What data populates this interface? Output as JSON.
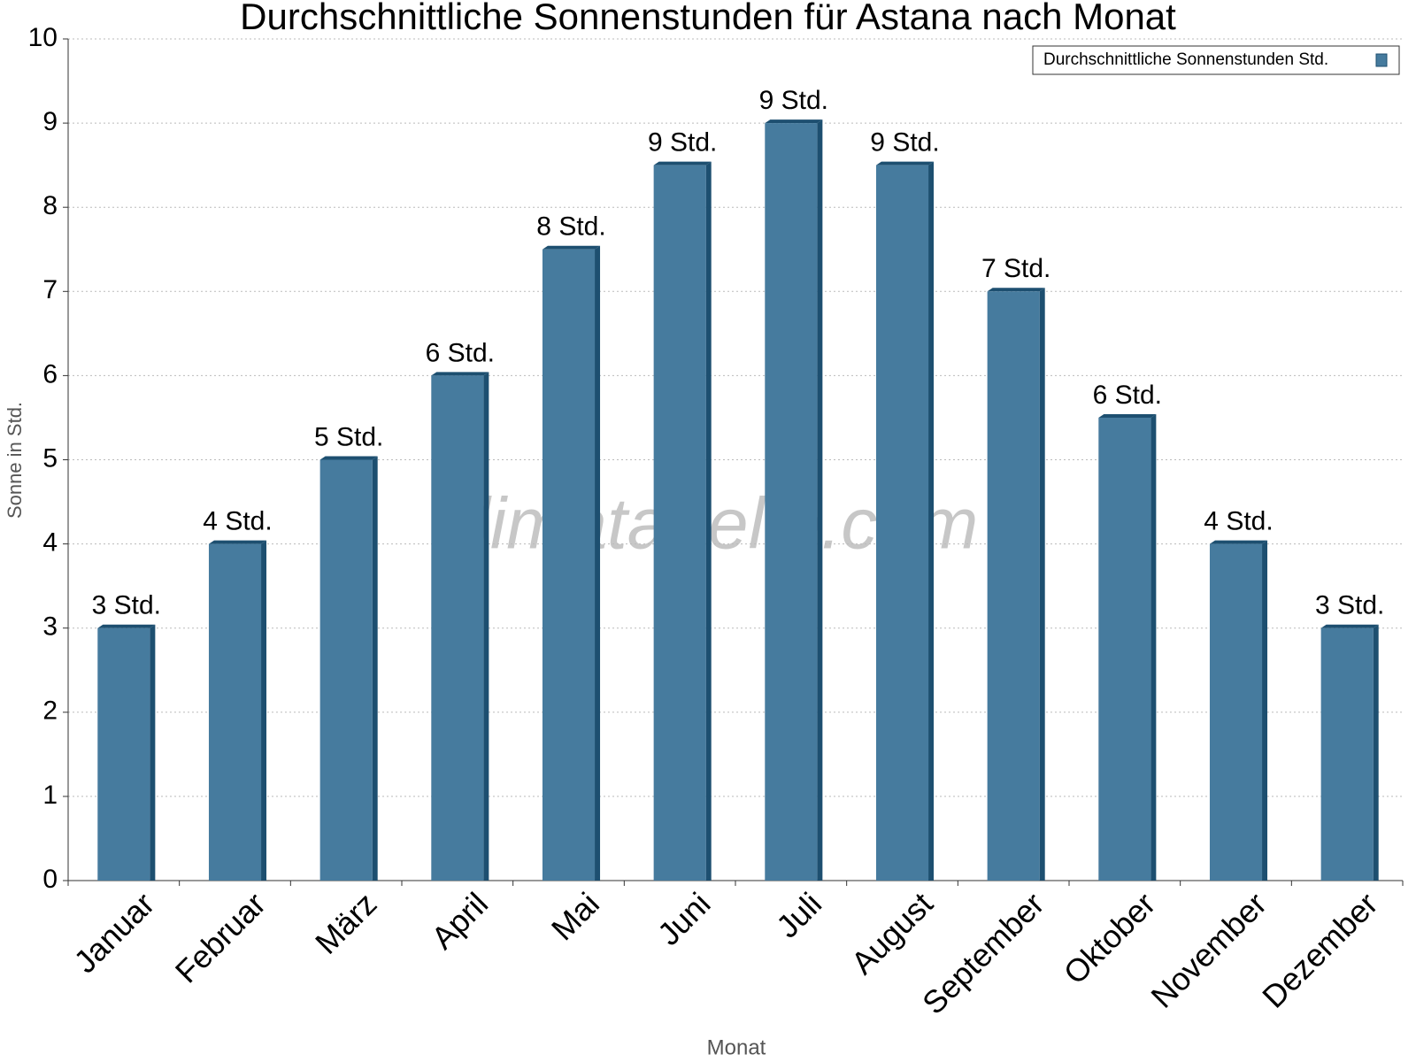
{
  "chart_data": {
    "type": "bar",
    "title": "Durchschnittliche Sonnenstunden für Astana nach Monat",
    "x_label": "Monat",
    "y_label": "Sonne in Std.",
    "watermark": "klimatabelle.com",
    "categories": [
      "Januar",
      "Februar",
      "März",
      "April",
      "Mai",
      "Juni",
      "Juli",
      "August",
      "September",
      "Oktober",
      "November",
      "Dezember"
    ],
    "series": [
      {
        "name": "Durchschnittliche Sonnenstunden Std.",
        "color": "#467b9e",
        "values": [
          3,
          4,
          5,
          6,
          7.5,
          8.5,
          9,
          8.5,
          7,
          5.5,
          4,
          3
        ],
        "value_labels": [
          "3 Std.",
          "4 Std.",
          "5 Std.",
          "6 Std.",
          "8 Std.",
          "9 Std.",
          "9 Std.",
          "9 Std.",
          "7 Std.",
          "6 Std.",
          "4 Std.",
          "3 Std."
        ]
      }
    ],
    "ylim": [
      0,
      10
    ],
    "yticks": [
      0,
      1,
      2,
      3,
      4,
      5,
      6,
      7,
      8,
      9,
      10
    ],
    "grid": true,
    "legend": "top-right"
  }
}
